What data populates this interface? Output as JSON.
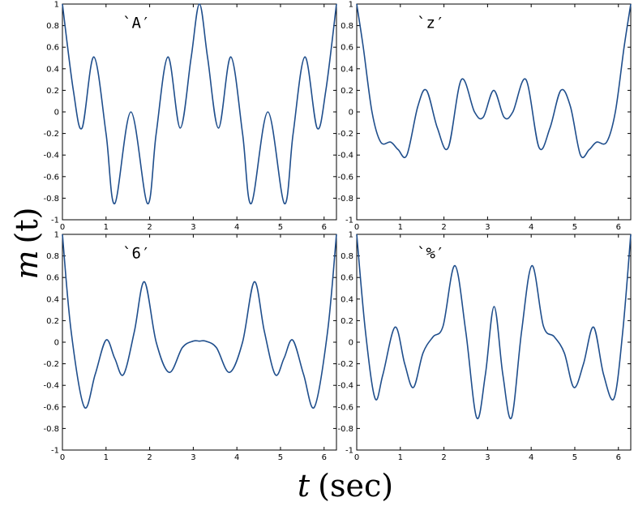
{
  "figure": {
    "ylabel_var": "m",
    "ylabel_arg": "(t)",
    "xlabel_var": "t",
    "xlabel_unit": "(sec)"
  },
  "colors": {
    "line": "#1f4e8c",
    "axes": "#000000",
    "background": "#ffffff"
  },
  "chart_data": [
    {
      "type": "line",
      "title": "`A′",
      "xlim": [
        0,
        6.2832
      ],
      "ylim": [
        -1,
        1
      ],
      "xticks": [
        "0",
        "1",
        "2",
        "3",
        "4",
        "5",
        "6"
      ],
      "yticks": [
        "-1",
        "-0.8",
        "-0.6",
        "-0.4",
        "-0.2",
        "0",
        "0.2",
        "0.4",
        "0.6",
        "0.8",
        "1"
      ],
      "x": [
        0,
        0.25,
        0.45,
        0.72,
        1.0,
        1.2,
        1.57,
        1.95,
        2.15,
        2.42,
        2.7,
        2.95,
        3.1416,
        3.33,
        3.58,
        3.86,
        4.13,
        4.33,
        4.71,
        5.09,
        5.29,
        5.56,
        5.84,
        6.04,
        6.2832
      ],
      "y": [
        1,
        0.2,
        -0.15,
        0.51,
        -0.2,
        -0.85,
        0,
        -0.85,
        -0.2,
        0.51,
        -0.15,
        0.5,
        1,
        0.5,
        -0.15,
        0.51,
        -0.2,
        -0.85,
        0,
        -0.85,
        -0.2,
        0.51,
        -0.15,
        0.2,
        1
      ]
    },
    {
      "type": "line",
      "title": "`z′",
      "xlim": [
        0,
        6.2832
      ],
      "ylim": [
        -1,
        1
      ],
      "xticks": [
        "0",
        "1",
        "2",
        "3",
        "4",
        "5",
        "6"
      ],
      "yticks": [
        "-1",
        "-0.8",
        "-0.6",
        "-0.4",
        "-0.2",
        "0",
        "0.2",
        "0.4",
        "0.6",
        "0.8",
        "1"
      ],
      "x": [
        0,
        0.15,
        0.35,
        0.55,
        0.78,
        0.95,
        1.15,
        1.4,
        1.6,
        1.85,
        2.1,
        2.4,
        2.7,
        2.9,
        3.1416,
        3.38,
        3.58,
        3.88,
        4.18,
        4.43,
        4.68,
        4.9,
        5.13,
        5.33,
        5.5,
        5.73,
        5.93,
        6.13,
        6.2832
      ],
      "y": [
        1,
        0.6,
        0,
        -0.28,
        -0.28,
        -0.35,
        -0.4,
        0.05,
        0.2,
        -0.15,
        -0.33,
        0.3,
        0.0,
        -0.05,
        0.2,
        -0.05,
        0.0,
        0.3,
        -0.33,
        -0.15,
        0.2,
        0.05,
        -0.4,
        -0.35,
        -0.28,
        -0.28,
        0,
        0.6,
        1
      ]
    },
    {
      "type": "line",
      "title": "`6′",
      "xlim": [
        0,
        6.2832
      ],
      "ylim": [
        -1,
        1
      ],
      "xticks": [
        "0",
        "1",
        "2",
        "3",
        "4",
        "5",
        "6"
      ],
      "yticks": [
        "-1",
        "-0.8",
        "-0.6",
        "-0.4",
        "-0.2",
        "0",
        "0.2",
        "0.4",
        "0.6",
        "0.8",
        "1"
      ],
      "x": [
        0,
        0.2,
        0.5,
        0.75,
        1.0,
        1.2,
        1.4,
        1.65,
        1.88,
        2.15,
        2.45,
        2.75,
        3.0,
        3.1416,
        3.28,
        3.53,
        3.83,
        4.13,
        4.4,
        4.63,
        4.88,
        5.08,
        5.28,
        5.53,
        5.78,
        6.08,
        6.2832
      ],
      "y": [
        1,
        0.1,
        -0.6,
        -0.3,
        0.02,
        -0.15,
        -0.3,
        0.1,
        0.56,
        0.0,
        -0.28,
        -0.05,
        0.01,
        0.01,
        0.01,
        -0.05,
        -0.28,
        0.0,
        0.56,
        0.1,
        -0.3,
        -0.15,
        0.02,
        -0.3,
        -0.6,
        0.1,
        1
      ]
    },
    {
      "type": "line",
      "title": "`%′",
      "xlim": [
        0,
        6.2832
      ],
      "ylim": [
        -1,
        1
      ],
      "xticks": [
        "0",
        "1",
        "2",
        "3",
        "4",
        "5",
        "6"
      ],
      "yticks": [
        "-1",
        "-0.8",
        "-0.6",
        "-0.4",
        "-0.2",
        "0",
        "0.2",
        "0.4",
        "0.6",
        "0.8",
        "1"
      ],
      "x": [
        0,
        0.2,
        0.42,
        0.6,
        0.88,
        1.1,
        1.3,
        1.52,
        1.75,
        1.98,
        2.25,
        2.5,
        2.75,
        2.95,
        3.15,
        3.35,
        3.55,
        3.78,
        4.02,
        4.28,
        4.53,
        4.76,
        4.98,
        5.2,
        5.43,
        5.66,
        5.9,
        6.1,
        6.2832
      ],
      "y": [
        1,
        0.1,
        -0.52,
        -0.3,
        0.14,
        -0.2,
        -0.42,
        -0.1,
        0.05,
        0.15,
        0.71,
        0.1,
        -0.7,
        -0.3,
        0.33,
        -0.3,
        -0.7,
        0.1,
        0.71,
        0.15,
        0.05,
        -0.1,
        -0.42,
        -0.2,
        0.14,
        -0.3,
        -0.52,
        0.1,
        1
      ]
    }
  ]
}
